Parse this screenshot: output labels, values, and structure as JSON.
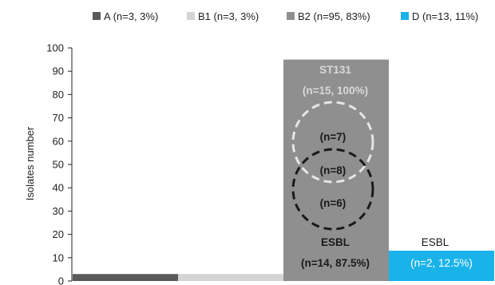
{
  "chart_data": {
    "type": "bar",
    "ylabel": "Isolates number",
    "ylim": [
      0,
      100
    ],
    "yticks": [
      0,
      10,
      20,
      30,
      40,
      50,
      60,
      70,
      80,
      90,
      100
    ],
    "grid": false,
    "legend_position": "top",
    "categories": [
      "A",
      "B1",
      "B2",
      "D"
    ],
    "values": [
      3,
      3,
      95,
      13
    ],
    "colors": [
      "#5a5a5a",
      "#d4d4d4",
      "#8f8f8f",
      "#19b3ea"
    ],
    "legend": [
      {
        "label": "A (n=3, 3%)",
        "color": "#5a5a5a"
      },
      {
        "label": "B1 (n=3, 3%)",
        "color": "#d4d4d4"
      },
      {
        "label": "B2 (n=95, 83%)",
        "color": "#8f8f8f"
      },
      {
        "label": "D (n=13, 11%)",
        "color": "#19b3ea"
      }
    ],
    "annotations": {
      "b2_top_title": "ST131",
      "b2_top_sub": "(n=15, 100%)",
      "venn_top": "(n=7)",
      "venn_overlap": "(n=8)",
      "venn_bottom": "(n=6)",
      "b2_bottom_title": "ESBL",
      "b2_bottom_sub": "(n=14, 87.5%)",
      "d_title": "ESBL",
      "d_sub": "(n=2, 12.5%)"
    }
  }
}
